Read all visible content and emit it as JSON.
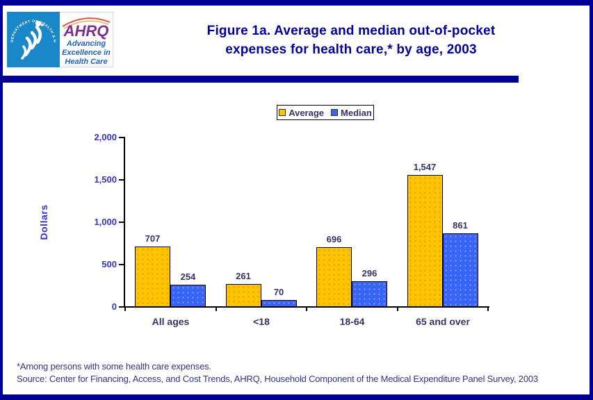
{
  "page": {
    "border_color": "#000099",
    "background": "#FFFFFF"
  },
  "header": {
    "logo": {
      "seal_text": "DEPARTMENT OF HEALTH & HUMAN SERVICES • USA",
      "ahrq_acronym": "AHRQ",
      "tagline_line1": "Advancing",
      "tagline_line2": "Excellence in",
      "tagline_line3": "Health Care",
      "hhs_blue": "#1987C8",
      "ahrq_purple": "#7B2E8E",
      "tagline_blue": "#2161C0"
    },
    "title_line1": "Figure 1a. Average and median out-of-pocket",
    "title_line2": "expenses for health care,* by age, 2003",
    "title_color": "#000099"
  },
  "divider_color": "#000099",
  "legend": {
    "items": [
      {
        "label": "Average",
        "color": "#FFC400"
      },
      {
        "label": "Median",
        "color": "#3A64F8"
      }
    ]
  },
  "chart_data": {
    "type": "bar",
    "title": "Figure 1a. Average and median out-of-pocket expenses for health care,* by age, 2003",
    "categories": [
      "All ages",
      "<18",
      "18-64",
      "65 and over"
    ],
    "series": [
      {
        "name": "Average",
        "color": "#FFC400",
        "values": [
          707,
          261,
          696,
          1547
        ],
        "labels": [
          "707",
          "261",
          "696",
          "1,547"
        ]
      },
      {
        "name": "Median",
        "color": "#3A64F8",
        "values": [
          254,
          70,
          296,
          861
        ],
        "labels": [
          "254",
          "70",
          "296",
          "861"
        ]
      }
    ],
    "xlabel": "",
    "ylabel": "Dollars",
    "ylim": [
      0,
      2000
    ],
    "yticks": [
      {
        "value": 0,
        "label": "0"
      },
      {
        "value": 500,
        "label": "500"
      },
      {
        "value": 1000,
        "label": "1,000"
      },
      {
        "value": 1500,
        "label": "1,500"
      },
      {
        "value": 2000,
        "label": "2,000"
      }
    ],
    "grid": false,
    "legend_position": "top-center"
  },
  "footer": {
    "footnote": "*Among persons with some health care expenses.",
    "source": "Source: Center for Financing, Access, and Cost Trends, AHRQ, Household Component of the Medical Expenditure Panel Survey, 2003"
  }
}
